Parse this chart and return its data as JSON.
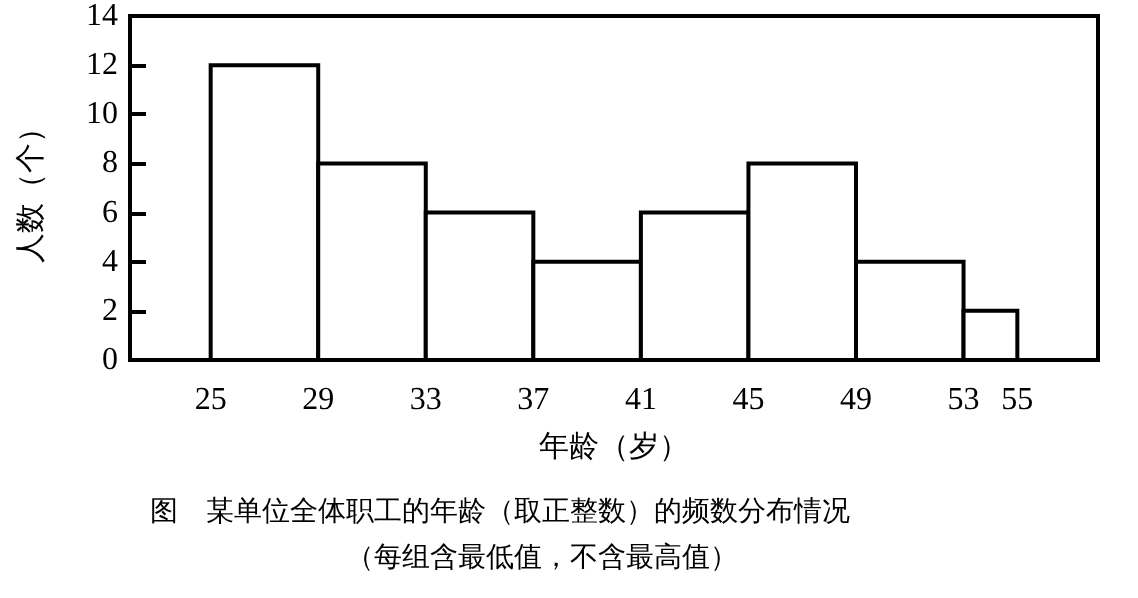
{
  "chart_data": {
    "type": "histogram",
    "title": "图　某单位全体职工的年龄（取正整数）的频数分布情况",
    "subtitle": "（每组含最低值，不含最高值）",
    "xlabel": "年龄（岁）",
    "ylabel": "人数（个）",
    "bins": [
      25,
      29,
      33,
      37,
      41,
      45,
      49,
      53,
      55
    ],
    "values": [
      12,
      8,
      6,
      4,
      6,
      8,
      4,
      2
    ],
    "color": "#ffffff",
    "ylim": [
      0,
      14
    ],
    "yticks": [
      0,
      2,
      4,
      6,
      8,
      10,
      12,
      14
    ],
    "xlim": [
      22,
      58
    ],
    "xticks": [
      25,
      29,
      33,
      37,
      41,
      45,
      49,
      53,
      55
    ]
  }
}
